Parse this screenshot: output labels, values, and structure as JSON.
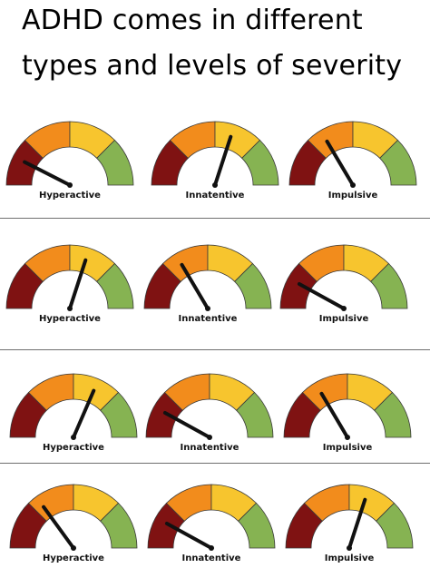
{
  "title": {
    "line1": "ADHD comes in different",
    "line2": "types and levels of severity"
  },
  "colors": {
    "zone1": "#7f1212",
    "zone2": "#f28c1c",
    "zone3": "#f7c52e",
    "zone4": "#86b352",
    "needle": "#111111",
    "divider": "#6f6f6f"
  },
  "rows": [
    {
      "gauges": [
        {
          "label": "Hyperactive",
          "level": 0.15
        },
        {
          "label": "Innatentive",
          "level": 0.6
        },
        {
          "label": "Impulsive",
          "level": 0.33
        }
      ]
    },
    {
      "gauges": [
        {
          "label": "Hyperactive",
          "level": 0.6
        },
        {
          "label": "Innatentive",
          "level": 0.33
        },
        {
          "label": "Impulsive",
          "level": 0.16
        }
      ]
    },
    {
      "gauges": [
        {
          "label": "Hyperactive",
          "level": 0.63
        },
        {
          "label": "Innatentive",
          "level": 0.16
        },
        {
          "label": "Impulsive",
          "level": 0.33
        }
      ]
    },
    {
      "gauges": [
        {
          "label": "Hyperactive",
          "level": 0.3
        },
        {
          "label": "Innatentive",
          "level": 0.16
        },
        {
          "label": "Impulsive",
          "level": 0.6
        }
      ]
    }
  ]
}
